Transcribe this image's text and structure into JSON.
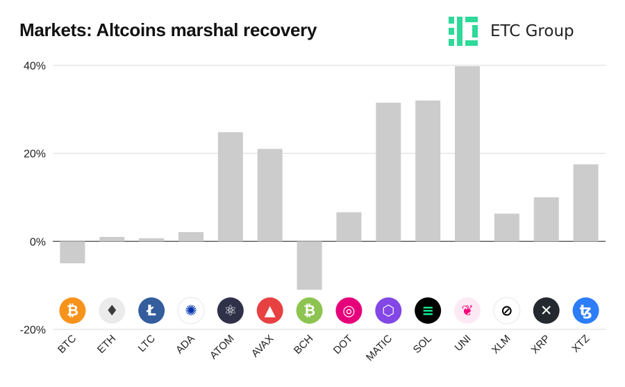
{
  "header": {
    "title": "Markets: Altcoins marshal recovery",
    "brand_name": "ETC Group",
    "brand_color": "#2fd99a"
  },
  "chart_data": {
    "type": "bar",
    "title": "Markets: Altcoins marshal recovery",
    "xlabel": "",
    "ylabel": "",
    "ylim": [
      -20,
      40
    ],
    "yticks": [
      40,
      20,
      0,
      -20
    ],
    "ytick_labels": [
      "40%",
      "20%",
      "0%",
      "-20%"
    ],
    "grid": true,
    "categories": [
      "BTC",
      "ETH",
      "LTC",
      "ADA",
      "ATOM",
      "AVAX",
      "BCH",
      "DOT",
      "MATIC",
      "SOL",
      "UNI",
      "XLM",
      "XRP",
      "XTZ"
    ],
    "values": [
      -5,
      1,
      0.7,
      2.1,
      24.8,
      21,
      -11,
      6.6,
      31.5,
      32,
      39.8,
      6.3,
      10,
      17.5
    ],
    "bar_color": "#cccccc",
    "icons": [
      {
        "name": "bitcoin-icon",
        "bg": "#f7931a",
        "fg": "#ffffff",
        "glyph": "₿"
      },
      {
        "name": "ethereum-icon",
        "bg": "#ebebeb",
        "fg": "#3c3c3d",
        "glyph": "♦"
      },
      {
        "name": "litecoin-icon",
        "bg": "#345d9d",
        "fg": "#ffffff",
        "glyph": "Ł"
      },
      {
        "name": "cardano-icon",
        "bg": "#ffffff",
        "fg": "#0033ad",
        "glyph": "✺"
      },
      {
        "name": "cosmos-icon",
        "bg": "#2e3148",
        "fg": "#ffffff",
        "glyph": "⚛"
      },
      {
        "name": "avalanche-icon",
        "bg": "#e84142",
        "fg": "#ffffff",
        "glyph": "▲"
      },
      {
        "name": "bitcoin-cash-icon",
        "bg": "#8dc351",
        "fg": "#ffffff",
        "glyph": "₿"
      },
      {
        "name": "polkadot-icon",
        "bg": "#e6007a",
        "fg": "#ffffff",
        "glyph": "◎"
      },
      {
        "name": "polygon-icon",
        "bg": "#8247e5",
        "fg": "#ffffff",
        "glyph": "⬡"
      },
      {
        "name": "solana-icon",
        "bg": "#000000",
        "fg": "#14f195",
        "glyph": "≡"
      },
      {
        "name": "uniswap-icon",
        "bg": "#fde9f3",
        "fg": "#ff007a",
        "glyph": "❦"
      },
      {
        "name": "stellar-icon",
        "bg": "#ffffff",
        "fg": "#000000",
        "glyph": "⊘"
      },
      {
        "name": "xrp-icon",
        "bg": "#23292f",
        "fg": "#ffffff",
        "glyph": "✕"
      },
      {
        "name": "tezos-icon",
        "bg": "#2c7df7",
        "fg": "#ffffff",
        "glyph": "ꜩ"
      }
    ]
  }
}
